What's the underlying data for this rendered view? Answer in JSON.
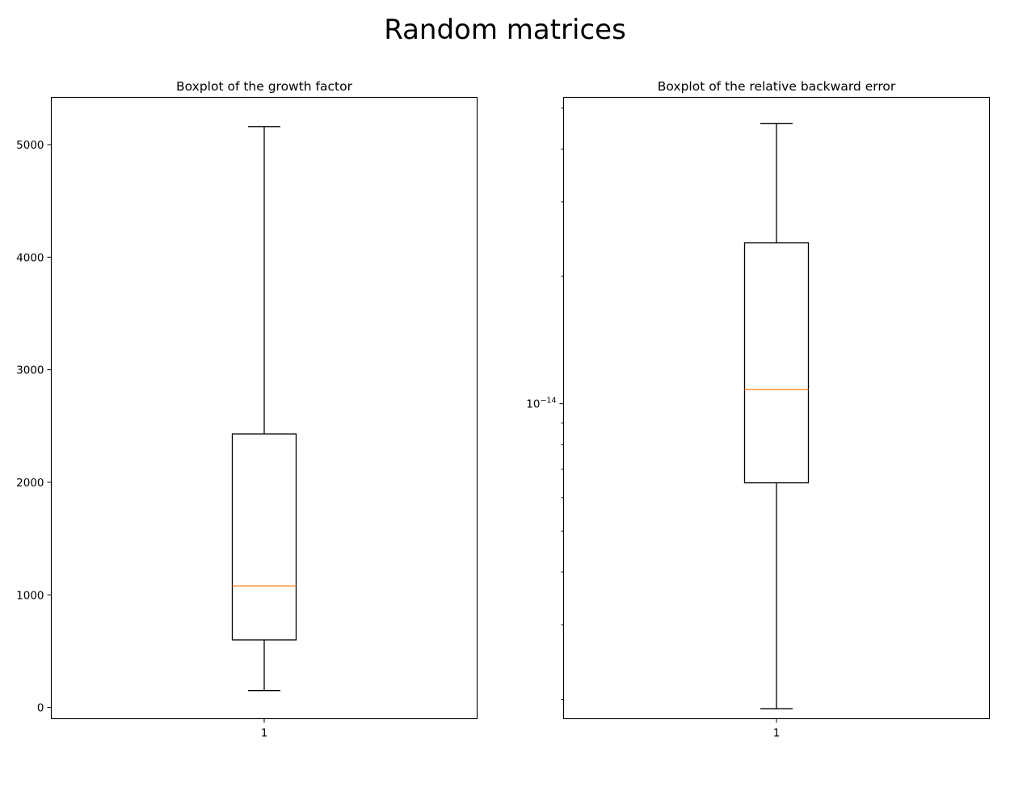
{
  "figure": {
    "suptitle": "Random matrices"
  },
  "colors": {
    "box": "#000000",
    "median": "#ff7f0e",
    "background": "#ffffff"
  },
  "chart_data": [
    {
      "type": "boxplot",
      "title": "Boxplot of the growth factor",
      "xlabel": "",
      "ylabel": "",
      "yscale": "linear",
      "ylim": [
        -100,
        5420
      ],
      "yticks": [
        0,
        1000,
        2000,
        3000,
        4000,
        5000
      ],
      "ytick_labels": [
        "0",
        "1000",
        "2000",
        "3000",
        "4000",
        "5000"
      ],
      "categories": [
        "1"
      ],
      "boxes": [
        {
          "whisker_low": 150,
          "q1": 600,
          "median": 1080,
          "q3": 2430,
          "whisker_high": 5160
        }
      ],
      "grid": false
    },
    {
      "type": "boxplot",
      "title": "Boxplot of the relative backward error",
      "xlabel": "",
      "ylabel": "",
      "yscale": "log",
      "ylim": [
        1.8e-15,
        5.3e-14
      ],
      "yticks": [
        1e-14
      ],
      "ytick_labels": [
        "10^-14"
      ],
      "ytick_label_base": "10",
      "ytick_label_exp": "−14",
      "minor_yticks": [
        2e-15,
        3e-15,
        4e-15,
        5e-15,
        6e-15,
        7e-15,
        8e-15,
        9e-15,
        2e-14,
        3e-14,
        4e-14,
        5e-14
      ],
      "categories": [
        "1"
      ],
      "boxes": [
        {
          "whisker_low": 1.9e-15,
          "q1": 6.5e-15,
          "median": 1.08e-14,
          "q3": 2.4e-14,
          "whisker_high": 4.6e-14
        }
      ],
      "grid": false
    }
  ]
}
